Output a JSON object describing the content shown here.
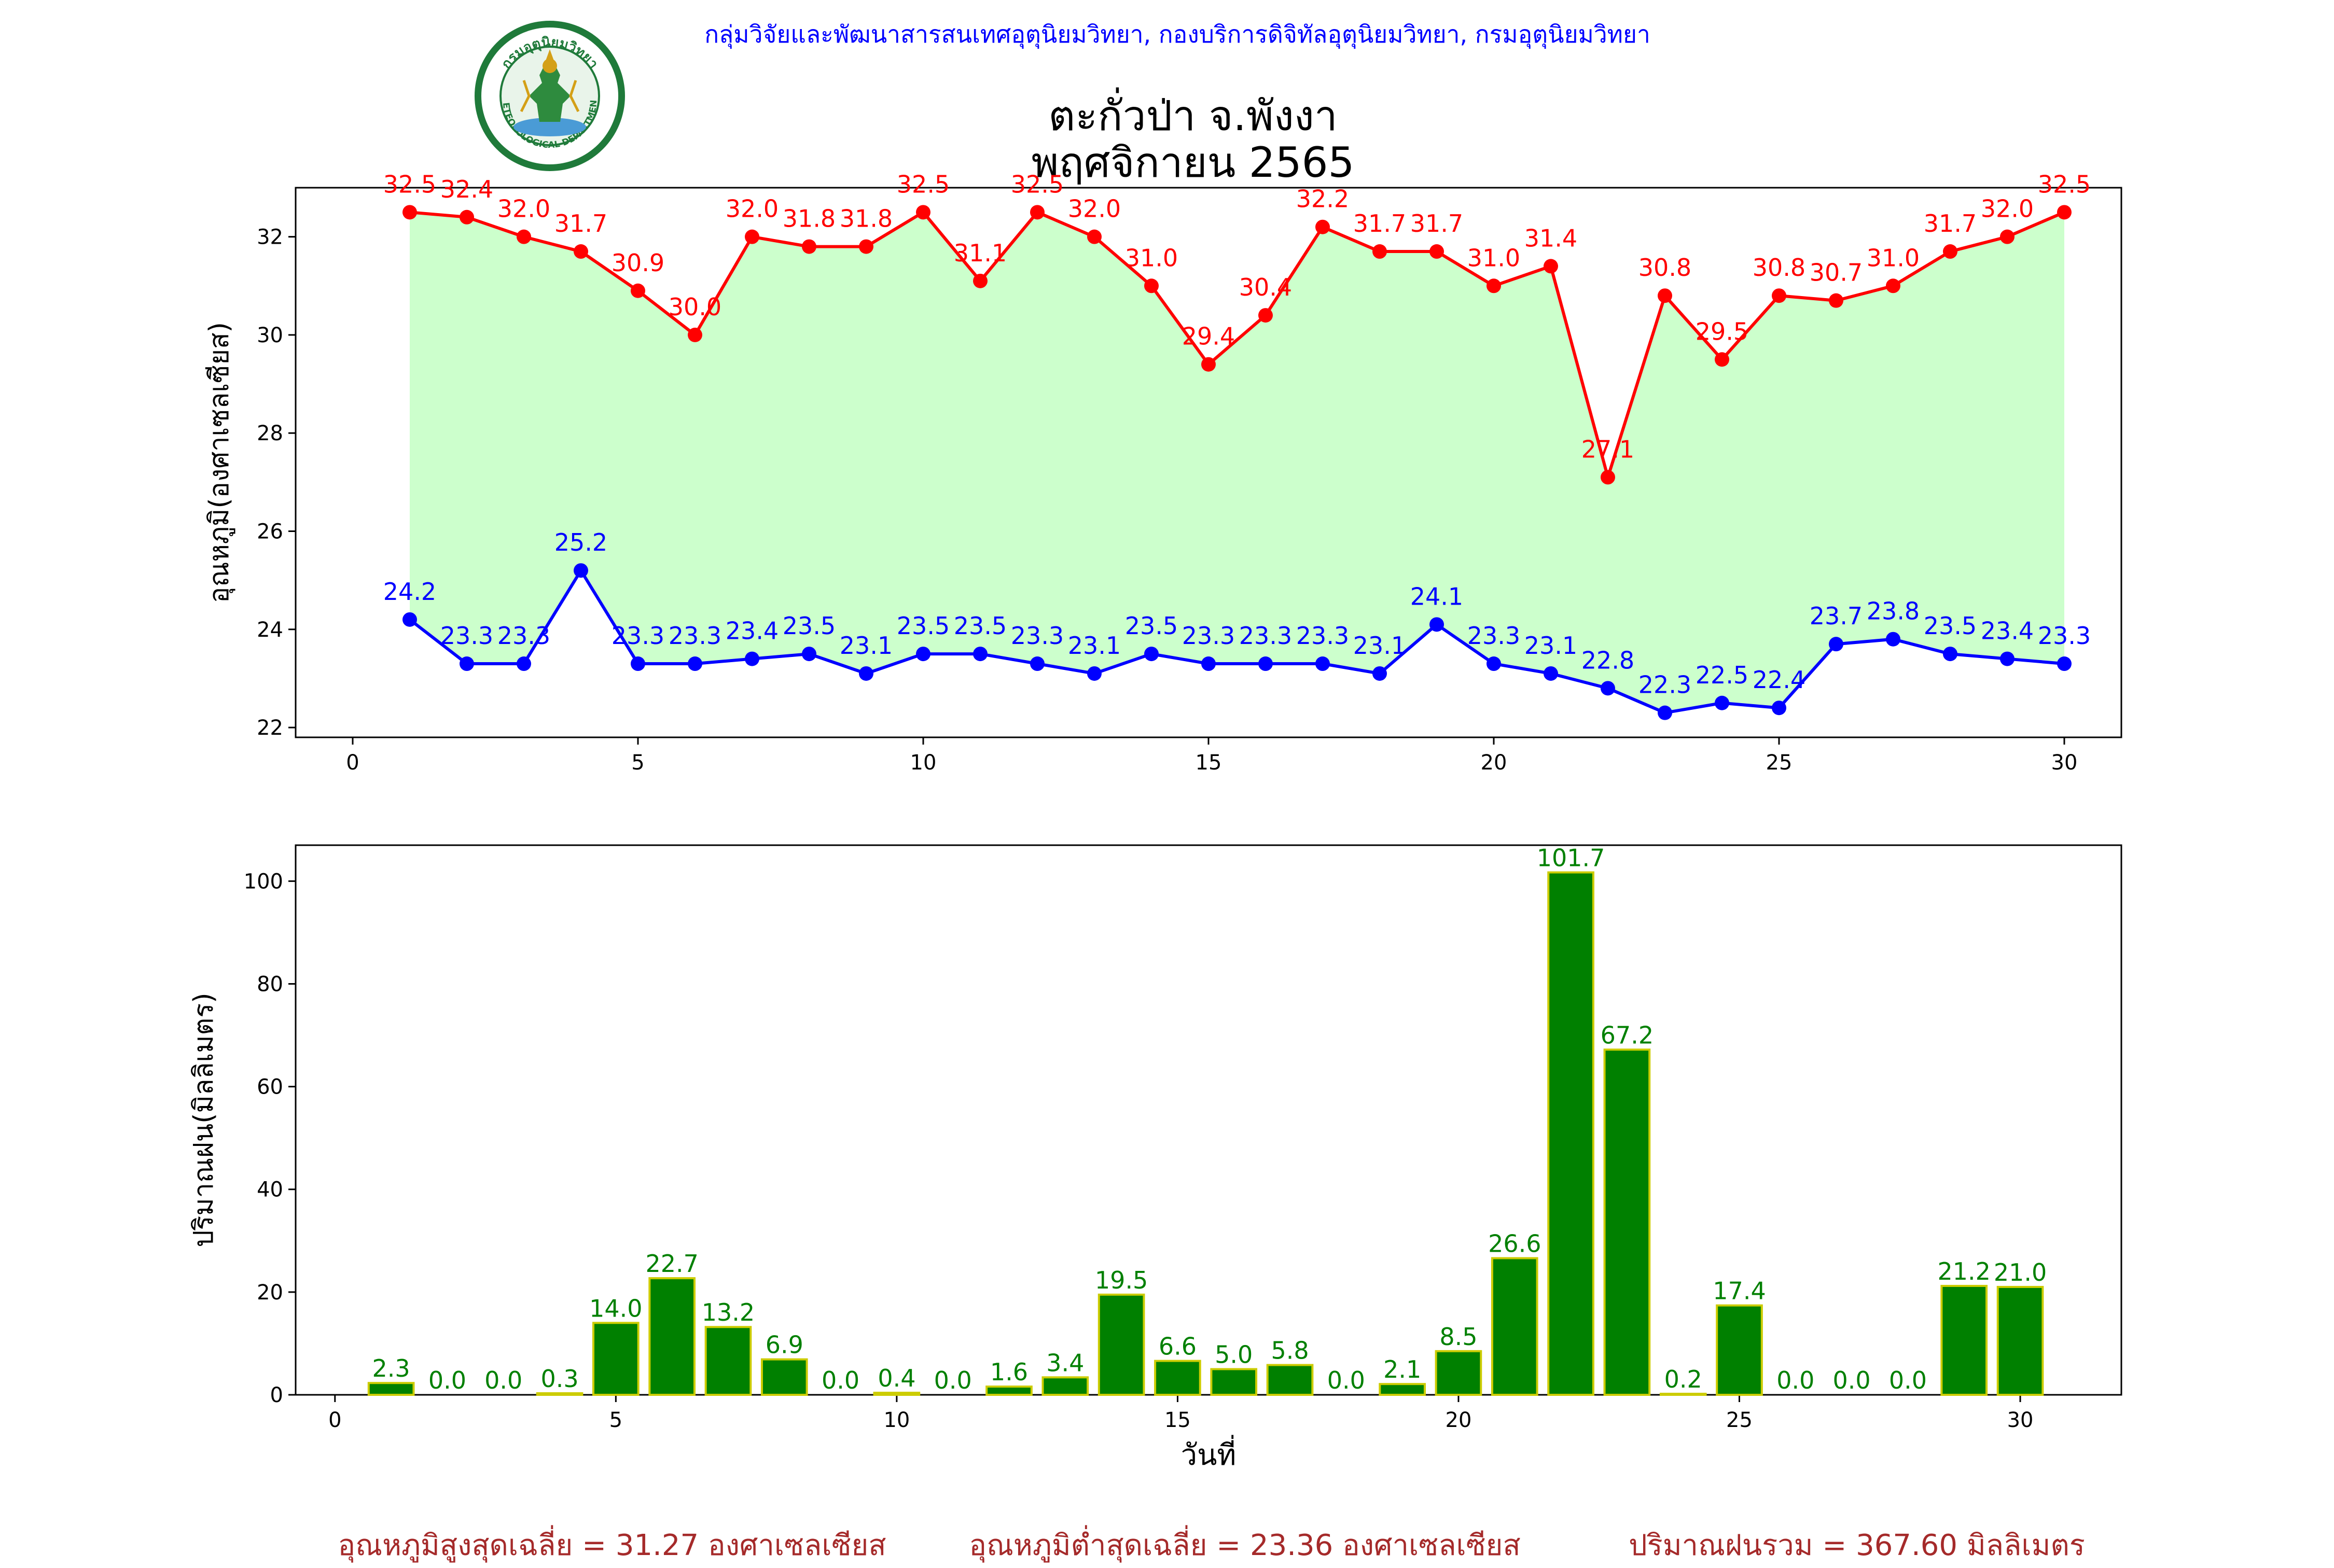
{
  "header": {
    "org": "กลุ่มวิจัยและพัฒนาสารสนเทศอุตุนิยมวิทยา, กองบริการดิจิทัลอุตุนิยมวิทยา, กรมอุตุนิยมวิทยา",
    "title": "ตะกั่วป่า จ.พังงา",
    "subtitle": "พฤศจิกายน 2565",
    "logo_text_top": "กรมอุตุนิยมวิทยา",
    "logo_text_bottom": "METEOROLOGICAL DEPARTMENT"
  },
  "footer": {
    "avg_max": "อุณหภูมิสูงสุดเฉลี่ย = 31.27 องศาเซลเซียส",
    "avg_min": "อุณหภูมิต่ำสุดเฉลี่ย = 23.36 องศาเซลเซียส",
    "total_rain": "ปริมาณฝนรวม = 367.60 มิลลิเมตร"
  },
  "colors": {
    "max_line": "#ff0000",
    "min_line": "#0000ff",
    "fill": "#ccffcc",
    "bar_fill": "#008000",
    "bar_edge": "#cccc00",
    "bar_label": "#008000",
    "footer": "#a52a2a",
    "org": "#0000ff"
  },
  "chart_data": [
    {
      "type": "line",
      "x": [
        1,
        2,
        3,
        4,
        5,
        6,
        7,
        8,
        9,
        10,
        11,
        12,
        13,
        14,
        15,
        16,
        17,
        18,
        19,
        20,
        21,
        22,
        23,
        24,
        25,
        26,
        27,
        28,
        29,
        30
      ],
      "series": [
        {
          "values": [
            32.5,
            32.4,
            32.0,
            31.7,
            30.9,
            30.0,
            32.0,
            31.8,
            31.8,
            32.5,
            31.1,
            32.5,
            32.0,
            31.0,
            29.4,
            30.4,
            32.2,
            31.7,
            31.7,
            31.0,
            31.4,
            27.1,
            30.8,
            29.5,
            30.8,
            30.7,
            31.0,
            31.7,
            32.0,
            32.5
          ]
        },
        {
          "values": [
            24.2,
            23.3,
            23.3,
            25.2,
            23.3,
            23.3,
            23.4,
            23.5,
            23.1,
            23.5,
            23.5,
            23.3,
            23.1,
            23.5,
            23.3,
            23.3,
            23.3,
            23.1,
            24.1,
            23.3,
            23.1,
            22.8,
            22.3,
            22.5,
            22.4,
            23.7,
            23.8,
            23.5,
            23.4,
            23.3
          ]
        }
      ],
      "area_between_series": true,
      "xlabel": "",
      "ylabel": "อุณหภูมิ(องศาเซลเซียส)",
      "xlim": [
        -1,
        31
      ],
      "ylim": [
        21.8,
        33.0
      ],
      "xticks": [
        0,
        5,
        10,
        15,
        20,
        25,
        30
      ],
      "yticks": [
        22,
        24,
        26,
        28,
        30,
        32
      ],
      "grid": false,
      "data_labels": true
    },
    {
      "type": "bar",
      "x": [
        1,
        2,
        3,
        4,
        5,
        6,
        7,
        8,
        9,
        10,
        11,
        12,
        13,
        14,
        15,
        16,
        17,
        18,
        19,
        20,
        21,
        22,
        23,
        24,
        25,
        26,
        27,
        28,
        29,
        30
      ],
      "values": [
        2.3,
        0.0,
        0.0,
        0.3,
        14.0,
        22.7,
        13.2,
        6.9,
        0.0,
        0.4,
        0.0,
        1.6,
        3.4,
        19.5,
        6.6,
        5.0,
        5.8,
        0.0,
        2.1,
        8.5,
        26.6,
        101.7,
        67.2,
        0.2,
        17.4,
        0.0,
        0.0,
        0.0,
        21.2,
        21.0
      ],
      "xlabel": "วันที่",
      "ylabel": "ปริมาณฝน(มิลลิเมตร)",
      "xlim": [
        -0.7,
        31.8
      ],
      "ylim": [
        0,
        107
      ],
      "xticks": [
        0,
        5,
        10,
        15,
        20,
        25,
        30
      ],
      "yticks": [
        0,
        20,
        40,
        60,
        80,
        100
      ],
      "grid": false,
      "data_labels": true
    }
  ]
}
